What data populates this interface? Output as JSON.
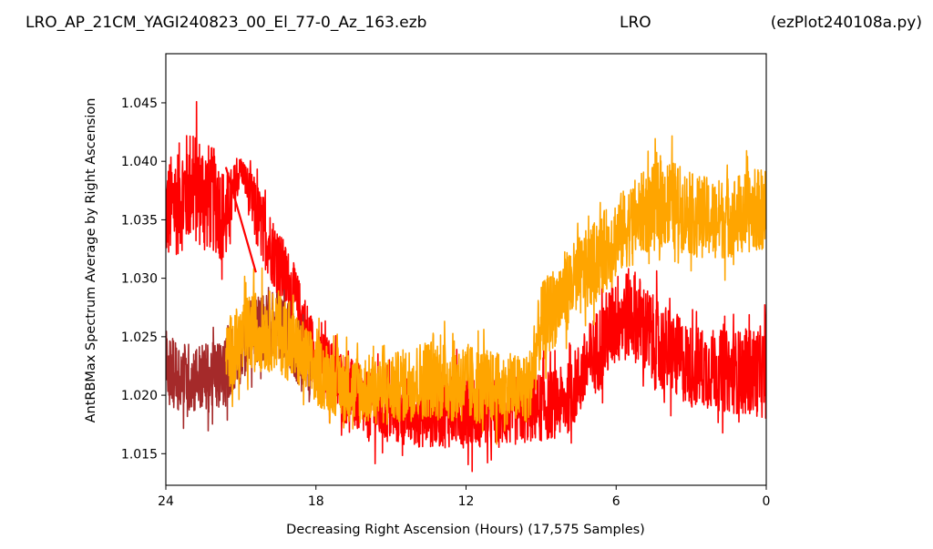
{
  "header": {
    "title_left": "LRO_AP_21CM_YAGI240823_00_El_77-0_Az_163.ezb",
    "title_center": "LRO",
    "title_right": "(ezPlot240108a.py)"
  },
  "chart_data": {
    "type": "line",
    "xlabel": "Decreasing Right Ascension (Hours) (17,575 Samples)",
    "ylabel": "AntRBMax Spectrum Average by Right Ascension",
    "xlim": [
      24,
      0
    ],
    "ylim": [
      1.0123,
      1.0492
    ],
    "x_ticks": [
      24,
      18,
      12,
      6,
      0
    ],
    "x_tick_labels": [
      "24",
      "18",
      "12",
      "6",
      "0"
    ],
    "y_ticks": [
      1.015,
      1.02,
      1.025,
      1.03,
      1.035,
      1.04,
      1.045
    ],
    "y_tick_labels": [
      "1.015",
      "1.020",
      "1.025",
      "1.030",
      "1.035",
      "1.040",
      "1.045"
    ],
    "grid": false,
    "legend": "none",
    "series": [
      {
        "color": "#ff0000",
        "x": [
          24.0,
          23.0,
          22.0,
          21.6,
          21.0,
          20.4,
          19.0,
          18.0,
          16.0,
          14.0,
          12.0,
          10.5,
          9.0,
          8.0,
          6.0,
          5.3,
          4.5,
          3.0,
          1.5,
          0.0
        ],
        "y": [
          1.0355,
          1.038,
          1.0365,
          1.035,
          1.0395,
          1.0355,
          1.029,
          1.023,
          1.019,
          1.0185,
          1.019,
          1.0185,
          1.019,
          1.0195,
          1.0265,
          1.027,
          1.0245,
          1.0225,
          1.022,
          1.022
        ],
        "spread": [
          0.0045,
          0.005,
          0.0045,
          0.004,
          0.001,
          0.003,
          0.003,
          0.003,
          0.003,
          0.003,
          0.0035,
          0.003,
          0.003,
          0.003,
          0.004,
          0.004,
          0.004,
          0.0035,
          0.0035,
          0.004
        ]
      },
      {
        "color": "#a52a2a",
        "x": [
          24.0,
          23.0,
          22.0,
          21.7,
          20.5,
          19.5,
          19.0,
          18.5,
          18.2
        ],
        "y": [
          1.022,
          1.0215,
          1.0215,
          1.022,
          1.0255,
          1.026,
          1.025,
          1.023,
          1.022
        ],
        "spread": [
          0.003,
          0.003,
          0.003,
          0.003,
          0.003,
          0.003,
          0.003,
          0.003,
          0.003
        ]
      },
      {
        "color": "#ffa500",
        "x": [
          21.6,
          20.5,
          19.5,
          18.0,
          16.5,
          15.0,
          13.5,
          12.0,
          10.5,
          9.5,
          9.0,
          8.0,
          7.0,
          6.0,
          5.0,
          4.0,
          3.0,
          2.0,
          1.0,
          0.0
        ],
        "y": [
          1.0235,
          1.0255,
          1.0255,
          1.022,
          1.0205,
          1.0205,
          1.0215,
          1.021,
          1.0205,
          1.0205,
          1.026,
          1.029,
          1.031,
          1.0335,
          1.0355,
          1.0365,
          1.0355,
          1.035,
          1.0355,
          1.036
        ],
        "spread": [
          0.003,
          0.0035,
          0.0035,
          0.003,
          0.003,
          0.003,
          0.0035,
          0.0035,
          0.003,
          0.003,
          0.0035,
          0.0035,
          0.0035,
          0.0035,
          0.0035,
          0.004,
          0.0035,
          0.0035,
          0.0035,
          0.0035
        ]
      }
    ],
    "annotations": [
      {
        "kind": "connector",
        "color": "#ff0000",
        "x": [
          21.6,
          20.4
        ],
        "y": [
          1.0395,
          1.0305
        ]
      }
    ]
  }
}
